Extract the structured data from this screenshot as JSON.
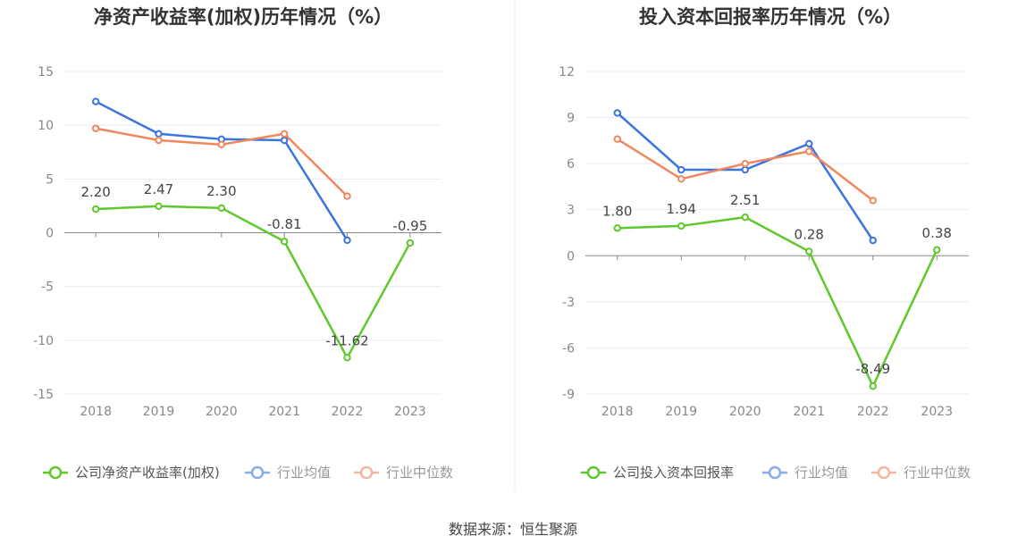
{
  "source": "数据来源：恒生聚源",
  "colors": {
    "company": "#5fc82c",
    "avg": "#3a74e0",
    "median": "#f0875f",
    "grid": "#e8ecf4",
    "zero_axis": "#888888"
  },
  "chart_data": [
    {
      "type": "line",
      "title": "净资产收益率(加权)历年情况（%）",
      "categories": [
        "2018",
        "2019",
        "2020",
        "2021",
        "2022",
        "2023"
      ],
      "ylim": [
        -15,
        15
      ],
      "yticks": [
        "15",
        "10",
        "5",
        "0",
        "-5",
        "-10",
        "-15"
      ],
      "ytick_values": [
        15,
        10,
        5,
        0,
        -5,
        -10,
        -15
      ],
      "legend_position": "bottom",
      "series": [
        {
          "name": "公司净资产收益率(加权)",
          "key": "company",
          "values": [
            2.2,
            2.47,
            2.3,
            -0.81,
            -11.62,
            -0.95
          ],
          "labels": [
            "2.20",
            "2.47",
            "2.30",
            "-0.81",
            "-11.62",
            "-0.95"
          ]
        },
        {
          "name": "行业均值",
          "key": "avg",
          "values": [
            12.2,
            9.2,
            8.7,
            8.6,
            -0.7,
            null
          ]
        },
        {
          "name": "行业中位数",
          "key": "median",
          "values": [
            9.7,
            8.6,
            8.2,
            9.2,
            3.4,
            null
          ]
        }
      ]
    },
    {
      "type": "line",
      "title": "投入资本回报率历年情况（%）",
      "categories": [
        "2018",
        "2019",
        "2020",
        "2021",
        "2022",
        "2023"
      ],
      "ylim": [
        -9,
        12
      ],
      "yticks": [
        "12",
        "9",
        "6",
        "3",
        "0",
        "-3",
        "-6",
        "-9"
      ],
      "ytick_values": [
        12,
        9,
        6,
        3,
        0,
        -3,
        -6,
        -9
      ],
      "legend_position": "bottom",
      "series": [
        {
          "name": "公司投入资本回报率",
          "key": "company",
          "values": [
            1.8,
            1.94,
            2.51,
            0.28,
            -8.49,
            0.38
          ],
          "labels": [
            "1.80",
            "1.94",
            "2.51",
            "0.28",
            "-8.49",
            "0.38"
          ]
        },
        {
          "name": "行业均值",
          "key": "avg",
          "values": [
            9.3,
            5.6,
            5.6,
            7.3,
            1.0,
            null
          ]
        },
        {
          "name": "行业中位数",
          "key": "median",
          "values": [
            7.6,
            5.0,
            6.0,
            6.8,
            3.6,
            null
          ]
        }
      ]
    }
  ]
}
